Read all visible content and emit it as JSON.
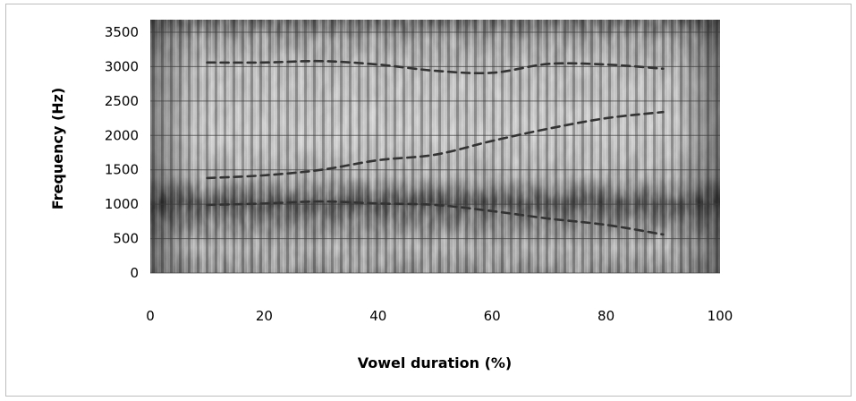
{
  "chart_data": {
    "type": "line",
    "title": "",
    "xlabel": "Vowel duration  (%)",
    "ylabel": "Frequency (Hz)",
    "xlim": [
      0,
      100
    ],
    "ylim": [
      0,
      3500
    ],
    "xticks": [
      0,
      20,
      40,
      60,
      80,
      100
    ],
    "yticks": [
      0,
      500,
      1000,
      1500,
      2000,
      2500,
      3000,
      3500
    ],
    "grid": true,
    "background": "spectrogram",
    "line_style": "dashed",
    "line_color": "#333333",
    "series": [
      {
        "x": [
          10,
          20,
          30,
          40,
          50,
          60,
          70,
          80,
          90
        ],
        "values": [
          990,
          1010,
          1040,
          1010,
          990,
          900,
          790,
          700,
          560
        ]
      },
      {
        "x": [
          10,
          20,
          30,
          40,
          50,
          60,
          70,
          80,
          90
        ],
        "values": [
          1380,
          1420,
          1500,
          1640,
          1720,
          1920,
          2100,
          2250,
          2340
        ]
      },
      {
        "x": [
          10,
          20,
          30,
          40,
          50,
          60,
          70,
          80,
          90
        ],
        "values": [
          3060,
          3060,
          3080,
          3030,
          2940,
          2910,
          3040,
          3030,
          2970
        ]
      }
    ]
  }
}
